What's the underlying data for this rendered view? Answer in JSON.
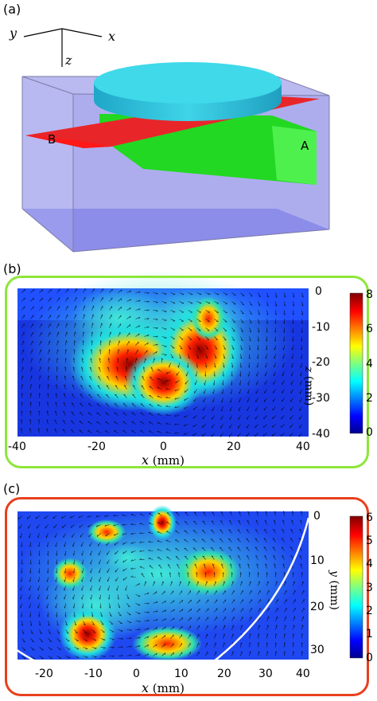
{
  "panel_a": {
    "label": "(a)",
    "axes": {
      "y": "y",
      "x": "x",
      "z": "z"
    },
    "plane_labels": {
      "b": "B",
      "a": "A"
    },
    "colors": {
      "box": "#8f8fe8",
      "disk": "#3fd4e8",
      "plane_b": "#e8262a",
      "plane_a": "#2ee82e"
    }
  },
  "panel_b": {
    "label": "(b)",
    "frame_color": "#8ee63a",
    "xlabel_var": "x",
    "xlabel_unit": " (mm)",
    "ylabel_var": "z",
    "ylabel_unit": " (mm)",
    "xticks": [
      "-40",
      "-20",
      "0",
      "20",
      "40"
    ],
    "yticks": [
      "0",
      "-10",
      "-20",
      "-30",
      "-40"
    ],
    "cbar_ticks": [
      "8",
      "6",
      "4",
      "2",
      "0"
    ]
  },
  "panel_c": {
    "label": "(c)",
    "frame_color": "#e8401e",
    "xlabel_var": "x",
    "xlabel_unit": " (mm)",
    "ylabel_var": "y",
    "ylabel_unit": " (mm)",
    "xticks": [
      "-20",
      "-10",
      "0",
      "10",
      "20",
      "30",
      "40"
    ],
    "yticks": [
      "0",
      "10",
      "20",
      "30"
    ],
    "cbar_ticks": [
      "6",
      "5",
      "4",
      "3",
      "2",
      "1",
      "0"
    ]
  },
  "chart_data": [
    {
      "type": "heatmap",
      "title": "",
      "xlabel": "x (mm)",
      "ylabel": "z (mm)",
      "xlim": [
        -40,
        40
      ],
      "ylim": [
        -40,
        0
      ],
      "colorbar_range": [
        0,
        8
      ],
      "colormap": "jet",
      "overlay": "velocity vectors",
      "hotspots": [
        {
          "x": -8,
          "y": -20,
          "value": 7.5
        },
        {
          "x": 10,
          "y": -18,
          "value": 7.0
        },
        {
          "x": 2,
          "y": -28,
          "value": 6.5
        }
      ]
    },
    {
      "type": "heatmap",
      "title": "",
      "xlabel": "x (mm)",
      "ylabel": "y (mm)",
      "xlim": [
        -28,
        40
      ],
      "ylim": [
        33,
        0
      ],
      "colorbar_range": [
        0,
        6
      ],
      "colormap": "jet",
      "overlay": "velocity vectors",
      "hotspots": [
        {
          "x": -13,
          "y": 23,
          "value": 5.5
        },
        {
          "x": 7,
          "y": 2,
          "value": 5.5
        },
        {
          "x": 18,
          "y": 14,
          "value": 4.5
        },
        {
          "x": 5,
          "y": 30,
          "value": 4.0
        }
      ]
    }
  ]
}
